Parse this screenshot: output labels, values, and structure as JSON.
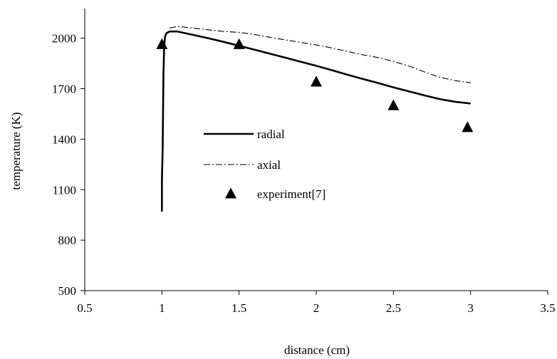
{
  "chart_data": {
    "type": "line",
    "title": "",
    "xlabel": "distance (cm)",
    "ylabel": "temperature (K)",
    "xlim": [
      0.5,
      3.5
    ],
    "ylim": [
      500,
      2100
    ],
    "xticks": [
      0.5,
      1,
      1.5,
      2,
      2.5,
      3,
      3.5
    ],
    "xtick_labels": [
      "0.5",
      "1",
      "1.5",
      "2",
      "2.5",
      "3",
      "3.5"
    ],
    "yticks": [
      500,
      800,
      1100,
      1400,
      1700,
      2000
    ],
    "ytick_labels": [
      "500",
      "800",
      "1100",
      "1400",
      "1700",
      "2000"
    ],
    "grid": false,
    "legend_position": "center",
    "series": [
      {
        "name": "radial",
        "type": "line",
        "style": "solid",
        "color": "#000000",
        "x": [
          1.0,
          1.0,
          1.005,
          1.01,
          1.015,
          1.02,
          1.03,
          1.05,
          1.1,
          1.2,
          1.3,
          1.4,
          1.5,
          1.6,
          1.7,
          1.8,
          1.9,
          2.0,
          2.1,
          2.2,
          2.3,
          2.4,
          2.5,
          2.6,
          2.7,
          2.8,
          2.9,
          2.95,
          3.0
        ],
        "y": [
          970,
          1150,
          1350,
          1800,
          1960,
          2010,
          2030,
          2040,
          2040,
          2020,
          2000,
          1978,
          1955,
          1932,
          1908,
          1884,
          1860,
          1836,
          1810,
          1784,
          1758,
          1734,
          1708,
          1684,
          1660,
          1638,
          1622,
          1617,
          1612
        ]
      },
      {
        "name": "axial",
        "type": "line",
        "style": "dash-dot",
        "color": "#000000",
        "x": [
          1.05,
          1.1,
          1.2,
          1.3,
          1.4,
          1.5,
          1.6,
          1.7,
          1.8,
          1.9,
          2.0,
          2.1,
          2.2,
          2.3,
          2.4,
          2.5,
          2.6,
          2.7,
          2.8,
          2.9,
          3.0
        ],
        "y": [
          2060,
          2070,
          2060,
          2050,
          2040,
          2035,
          2022,
          2005,
          1990,
          1975,
          1960,
          1942,
          1922,
          1902,
          1885,
          1862,
          1835,
          1800,
          1768,
          1748,
          1735
        ]
      },
      {
        "name": "experiment[7]",
        "type": "scatter",
        "marker": "triangle",
        "color": "#000000",
        "x": [
          1.0,
          1.5,
          2.0,
          2.5,
          2.98
        ],
        "y": [
          1963,
          1963,
          1740,
          1600,
          1470
        ]
      }
    ]
  }
}
